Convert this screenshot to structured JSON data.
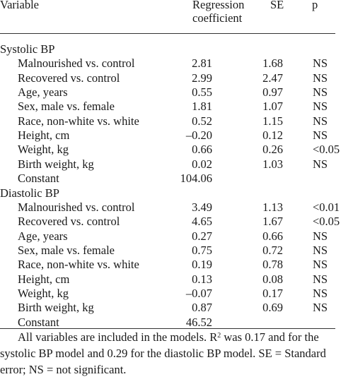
{
  "header": {
    "variable": "Variable",
    "coef_line1": "Regression",
    "coef_line2": "coefficient",
    "se": "SE",
    "p": "p"
  },
  "sections": [
    {
      "title": "Systolic BP",
      "rows": [
        {
          "label": "Malnourished vs. control",
          "coef": "2.81",
          "se": "1.68",
          "p": "NS"
        },
        {
          "label": "Recovered vs. control",
          "coef": "2.99",
          "se": "2.47",
          "p": "NS"
        },
        {
          "label": "Age, years",
          "coef": "0.55",
          "se": "0.97",
          "p": "NS"
        },
        {
          "label": "Sex, male vs. female",
          "coef": "1.81",
          "se": "1.07",
          "p": "NS"
        },
        {
          "label": "Race, non-white vs. white",
          "coef": "0.52",
          "se": "1.15",
          "p": "NS"
        },
        {
          "label": "Height, cm",
          "coef": "–0.20",
          "se": "0.12",
          "p": "NS"
        },
        {
          "label": "Weight, kg",
          "coef": "0.66",
          "se": "0.26",
          "p": "<0.05"
        },
        {
          "label": "Birth weight, kg",
          "coef": "0.02",
          "se": "1.03",
          "p": "NS"
        },
        {
          "label": "Constant",
          "coef": "104.06",
          "se": "",
          "p": ""
        }
      ]
    },
    {
      "title": "Diastolic BP",
      "rows": [
        {
          "label": "Malnourished vs. control",
          "coef": "3.49",
          "se": "1.13",
          "p": "<0.01"
        },
        {
          "label": "Recovered vs. control",
          "coef": "4.65",
          "se": "1.67",
          "p": "<0.05"
        },
        {
          "label": "Age, years",
          "coef": "0.27",
          "se": "0.66",
          "p": "NS"
        },
        {
          "label": "Sex, male vs. female",
          "coef": "0.75",
          "se": "0.72",
          "p": "NS"
        },
        {
          "label": "Race, non-white vs. white",
          "coef": "0.19",
          "se": "0.78",
          "p": "NS"
        },
        {
          "label": "Height, cm",
          "coef": "0.13",
          "se": "0.08",
          "p": "NS"
        },
        {
          "label": "Weight, kg",
          "coef": "–0.07",
          "se": "0.17",
          "p": "NS"
        },
        {
          "label": "Birth weight, kg",
          "coef": "0.87",
          "se": "0.69",
          "p": "NS"
        },
        {
          "label": "Constant",
          "coef": "46.52",
          "se": "",
          "p": ""
        }
      ]
    }
  ],
  "footnote": {
    "line1_a": "All variables are included in the models. R",
    "line1_sup": "2",
    "line1_b": " was 0.17 and for the",
    "line2": "systolic BP model and 0.29 for the diastolic BP model. SE = Standard",
    "line3": "error; NS = not significant."
  }
}
